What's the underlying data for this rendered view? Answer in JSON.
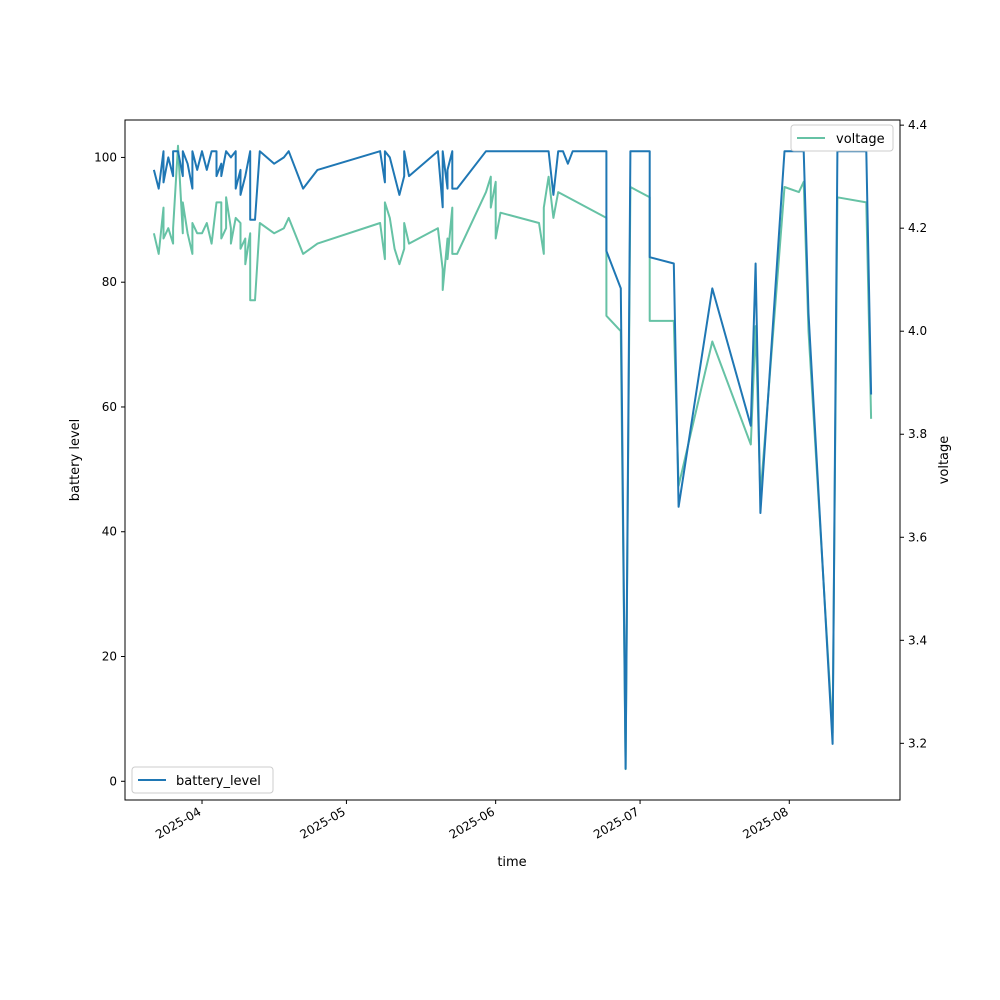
{
  "chart_data": {
    "type": "line",
    "xlabel": "time",
    "y_left_label": "battery level",
    "y_right_label": "voltage",
    "x_tick_labels": [
      "2025-04",
      "2025-05",
      "2025-06",
      "2025-07",
      "2025-08"
    ],
    "x_ticks": [
      "2025-04-01",
      "2025-05-01",
      "2025-06-01",
      "2025-07-01",
      "2025-08-01"
    ],
    "xlim": [
      "2025-03-16",
      "2025-08-24"
    ],
    "y_left_ticks": [
      0,
      20,
      40,
      60,
      80,
      100
    ],
    "y_left_lim": [
      -3,
      106
    ],
    "y_right_ticks": [
      3.2,
      3.4,
      3.6,
      3.8,
      4.0,
      4.2,
      4.4
    ],
    "y_right_lim": [
      3.09,
      4.41
    ],
    "grid": false,
    "series": [
      {
        "name": "battery_level",
        "axis": "left",
        "color": "#1f77b4",
        "legend_position": "lower-left",
        "points": [
          [
            "2025-03-22",
            98
          ],
          [
            "2025-03-23",
            95
          ],
          [
            "2025-03-24",
            101
          ],
          [
            "2025-03-24",
            96
          ],
          [
            "2025-03-25",
            100
          ],
          [
            "2025-03-26",
            97
          ],
          [
            "2025-03-26",
            101
          ],
          [
            "2025-03-27",
            101
          ],
          [
            "2025-03-28",
            97
          ],
          [
            "2025-03-28",
            101
          ],
          [
            "2025-03-29",
            99
          ],
          [
            "2025-03-30",
            95
          ],
          [
            "2025-03-30",
            101
          ],
          [
            "2025-03-31",
            98
          ],
          [
            "2025-04-01",
            101
          ],
          [
            "2025-04-02",
            98
          ],
          [
            "2025-04-03",
            101
          ],
          [
            "2025-04-04",
            101
          ],
          [
            "2025-04-04",
            97
          ],
          [
            "2025-04-05",
            99
          ],
          [
            "2025-04-05",
            97
          ],
          [
            "2025-04-06",
            101
          ],
          [
            "2025-04-07",
            100
          ],
          [
            "2025-04-08",
            101
          ],
          [
            "2025-04-08",
            95
          ],
          [
            "2025-04-09",
            98
          ],
          [
            "2025-04-09",
            94
          ],
          [
            "2025-04-10",
            97
          ],
          [
            "2025-04-11",
            101
          ],
          [
            "2025-04-11",
            90
          ],
          [
            "2025-04-12",
            90
          ],
          [
            "2025-04-13",
            101
          ],
          [
            "2025-04-16",
            99
          ],
          [
            "2025-04-18",
            100
          ],
          [
            "2025-04-19",
            101
          ],
          [
            "2025-04-22",
            95
          ],
          [
            "2025-04-25",
            98
          ],
          [
            "2025-05-08",
            101
          ],
          [
            "2025-05-09",
            96
          ],
          [
            "2025-05-09",
            101
          ],
          [
            "2025-05-10",
            100
          ],
          [
            "2025-05-11",
            97
          ],
          [
            "2025-05-12",
            94
          ],
          [
            "2025-05-13",
            97
          ],
          [
            "2025-05-13",
            101
          ],
          [
            "2025-05-14",
            97
          ],
          [
            "2025-05-20",
            101
          ],
          [
            "2025-05-21",
            92
          ],
          [
            "2025-05-21",
            101
          ],
          [
            "2025-05-22",
            95
          ],
          [
            "2025-05-22",
            98
          ],
          [
            "2025-05-23",
            101
          ],
          [
            "2025-05-23",
            95
          ],
          [
            "2025-05-24",
            95
          ],
          [
            "2025-05-30",
            101
          ],
          [
            "2025-06-12",
            101
          ],
          [
            "2025-06-13",
            94
          ],
          [
            "2025-06-14",
            101
          ],
          [
            "2025-06-15",
            101
          ],
          [
            "2025-06-16",
            99
          ],
          [
            "2025-06-17",
            101
          ],
          [
            "2025-06-24",
            101
          ],
          [
            "2025-06-24",
            85
          ],
          [
            "2025-06-27",
            79
          ],
          [
            "2025-06-28",
            2
          ],
          [
            "2025-06-29",
            101
          ],
          [
            "2025-07-03",
            101
          ],
          [
            "2025-07-03",
            84
          ],
          [
            "2025-07-08",
            83
          ],
          [
            "2025-07-09",
            44
          ],
          [
            "2025-07-16",
            79
          ],
          [
            "2025-07-24",
            57
          ],
          [
            "2025-07-25",
            83
          ],
          [
            "2025-07-26",
            43
          ],
          [
            "2025-07-31",
            101
          ],
          [
            "2025-08-03",
            101
          ],
          [
            "2025-08-04",
            101
          ],
          [
            "2025-08-05",
            75
          ],
          [
            "2025-08-10",
            6
          ],
          [
            "2025-08-11",
            101
          ],
          [
            "2025-08-17",
            101
          ],
          [
            "2025-08-18",
            62
          ]
        ]
      },
      {
        "name": "voltage",
        "axis": "right",
        "color": "#66c2a5",
        "legend_position": "upper-right",
        "points": [
          [
            "2025-03-22",
            4.19
          ],
          [
            "2025-03-23",
            4.15
          ],
          [
            "2025-03-24",
            4.24
          ],
          [
            "2025-03-24",
            4.18
          ],
          [
            "2025-03-25",
            4.2
          ],
          [
            "2025-03-26",
            4.17
          ],
          [
            "2025-03-26",
            4.2
          ],
          [
            "2025-03-27",
            4.36
          ],
          [
            "2025-03-28",
            4.19
          ],
          [
            "2025-03-28",
            4.25
          ],
          [
            "2025-03-29",
            4.19
          ],
          [
            "2025-03-30",
            4.15
          ],
          [
            "2025-03-30",
            4.21
          ],
          [
            "2025-03-31",
            4.19
          ],
          [
            "2025-04-01",
            4.19
          ],
          [
            "2025-04-02",
            4.21
          ],
          [
            "2025-04-03",
            4.17
          ],
          [
            "2025-04-04",
            4.25
          ],
          [
            "2025-04-05",
            4.25
          ],
          [
            "2025-04-05",
            4.18
          ],
          [
            "2025-04-06",
            4.2
          ],
          [
            "2025-04-06",
            4.26
          ],
          [
            "2025-04-07",
            4.2
          ],
          [
            "2025-04-07",
            4.17
          ],
          [
            "2025-04-08",
            4.22
          ],
          [
            "2025-04-09",
            4.21
          ],
          [
            "2025-04-09",
            4.16
          ],
          [
            "2025-04-10",
            4.18
          ],
          [
            "2025-04-10",
            4.13
          ],
          [
            "2025-04-11",
            4.19
          ],
          [
            "2025-04-11",
            4.06
          ],
          [
            "2025-04-12",
            4.06
          ],
          [
            "2025-04-13",
            4.21
          ],
          [
            "2025-04-16",
            4.19
          ],
          [
            "2025-04-18",
            4.2
          ],
          [
            "2025-04-19",
            4.22
          ],
          [
            "2025-04-22",
            4.15
          ],
          [
            "2025-04-25",
            4.17
          ],
          [
            "2025-05-08",
            4.21
          ],
          [
            "2025-05-09",
            4.14
          ],
          [
            "2025-05-09",
            4.25
          ],
          [
            "2025-05-10",
            4.22
          ],
          [
            "2025-05-11",
            4.16
          ],
          [
            "2025-05-12",
            4.13
          ],
          [
            "2025-05-13",
            4.16
          ],
          [
            "2025-05-13",
            4.21
          ],
          [
            "2025-05-14",
            4.17
          ],
          [
            "2025-05-20",
            4.2
          ],
          [
            "2025-05-21",
            4.12
          ],
          [
            "2025-05-21",
            4.08
          ],
          [
            "2025-05-22",
            4.18
          ],
          [
            "2025-05-22",
            4.14
          ],
          [
            "2025-05-23",
            4.24
          ],
          [
            "2025-05-23",
            4.15
          ],
          [
            "2025-05-24",
            4.15
          ],
          [
            "2025-05-30",
            4.27
          ],
          [
            "2025-05-31",
            4.3
          ],
          [
            "2025-05-31",
            4.24
          ],
          [
            "2025-06-01",
            4.29
          ],
          [
            "2025-06-01",
            4.18
          ],
          [
            "2025-06-02",
            4.23
          ],
          [
            "2025-06-10",
            4.21
          ],
          [
            "2025-06-11",
            4.15
          ],
          [
            "2025-06-11",
            4.24
          ],
          [
            "2025-06-12",
            4.3
          ],
          [
            "2025-06-13",
            4.22
          ],
          [
            "2025-06-14",
            4.27
          ],
          [
            "2025-06-24",
            4.22
          ],
          [
            "2025-06-24",
            4.03
          ],
          [
            "2025-06-27",
            4.0
          ],
          [
            "2025-06-28",
            3.15
          ],
          [
            "2025-06-29",
            4.28
          ],
          [
            "2025-07-03",
            4.26
          ],
          [
            "2025-07-03",
            4.02
          ],
          [
            "2025-07-08",
            4.02
          ],
          [
            "2025-07-09",
            3.7
          ],
          [
            "2025-07-16",
            3.98
          ],
          [
            "2025-07-24",
            3.78
          ],
          [
            "2025-07-25",
            4.01
          ],
          [
            "2025-07-26",
            3.68
          ],
          [
            "2025-07-31",
            4.28
          ],
          [
            "2025-08-03",
            4.27
          ],
          [
            "2025-08-04",
            4.29
          ],
          [
            "2025-08-05",
            4.0
          ],
          [
            "2025-08-10",
            3.22
          ],
          [
            "2025-08-11",
            4.26
          ],
          [
            "2025-08-17",
            4.25
          ],
          [
            "2025-08-18",
            3.83
          ]
        ]
      }
    ]
  }
}
